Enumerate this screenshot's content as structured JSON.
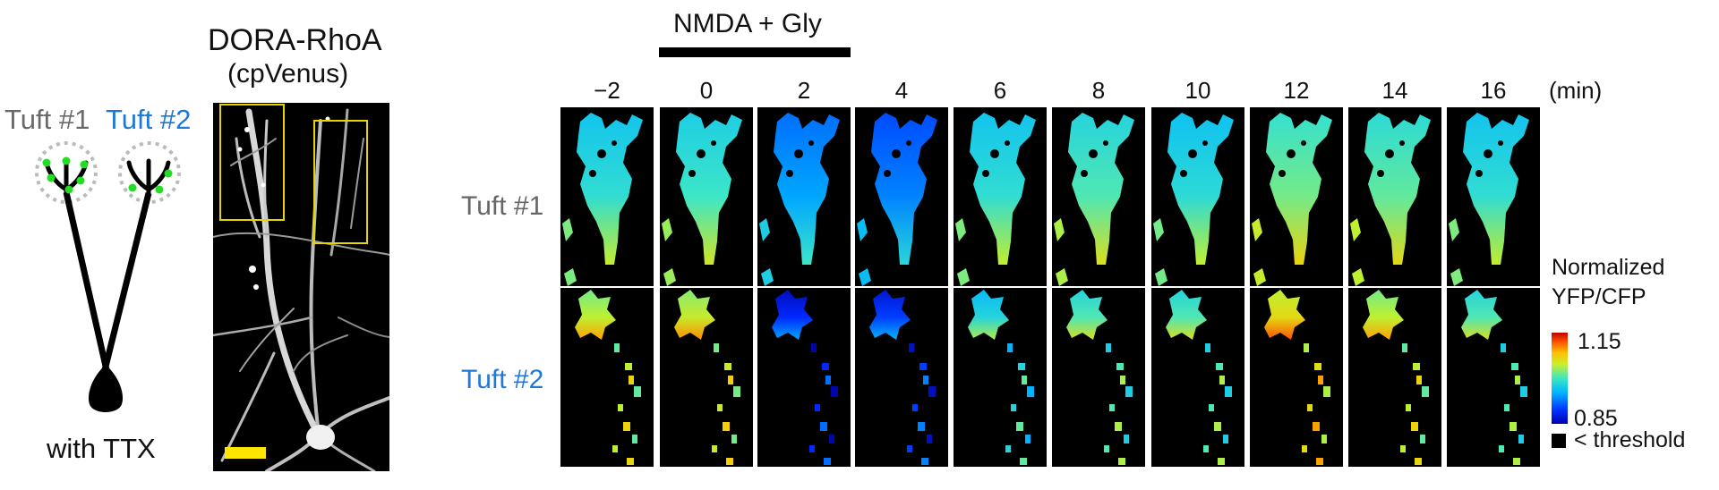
{
  "schematic": {
    "tuft1_label": "Tuft #1",
    "tuft2_label": "Tuft #2",
    "condition": "with TTX",
    "colors": {
      "tuft1": "#6a6a6a",
      "tuft2": "#1f78d8",
      "spines": "#22dd22",
      "outline": "#bbbbbb"
    }
  },
  "micrograph": {
    "title": "DORA-RhoA",
    "subtitle": "(cpVenus)",
    "box_color": "#e8d400",
    "scale_bar_color": "#ffe600"
  },
  "timelapse": {
    "stimulus": "NMDA + Gly",
    "time_unit": "(min)",
    "times": [
      "−2",
      "0",
      "2",
      "4",
      "6",
      "8",
      "10",
      "12",
      "14",
      "16"
    ],
    "rows": [
      {
        "label": "Tuft #1",
        "color": "#666666"
      },
      {
        "label": "Tuft #2",
        "color": "#1f78d8"
      }
    ],
    "ratio_levels": {
      "tuft1": [
        0.45,
        0.48,
        0.3,
        0.25,
        0.45,
        0.5,
        0.44,
        0.54,
        0.52,
        0.45
      ],
      "tuft2": [
        0.62,
        0.64,
        0.12,
        0.15,
        0.42,
        0.5,
        0.5,
        0.7,
        0.62,
        0.5
      ]
    }
  },
  "colorbar": {
    "title_line1": "Normalized",
    "title_line2": "YFP/CFP",
    "max": "1.15",
    "min": "0.85",
    "below_threshold": "< threshold"
  }
}
